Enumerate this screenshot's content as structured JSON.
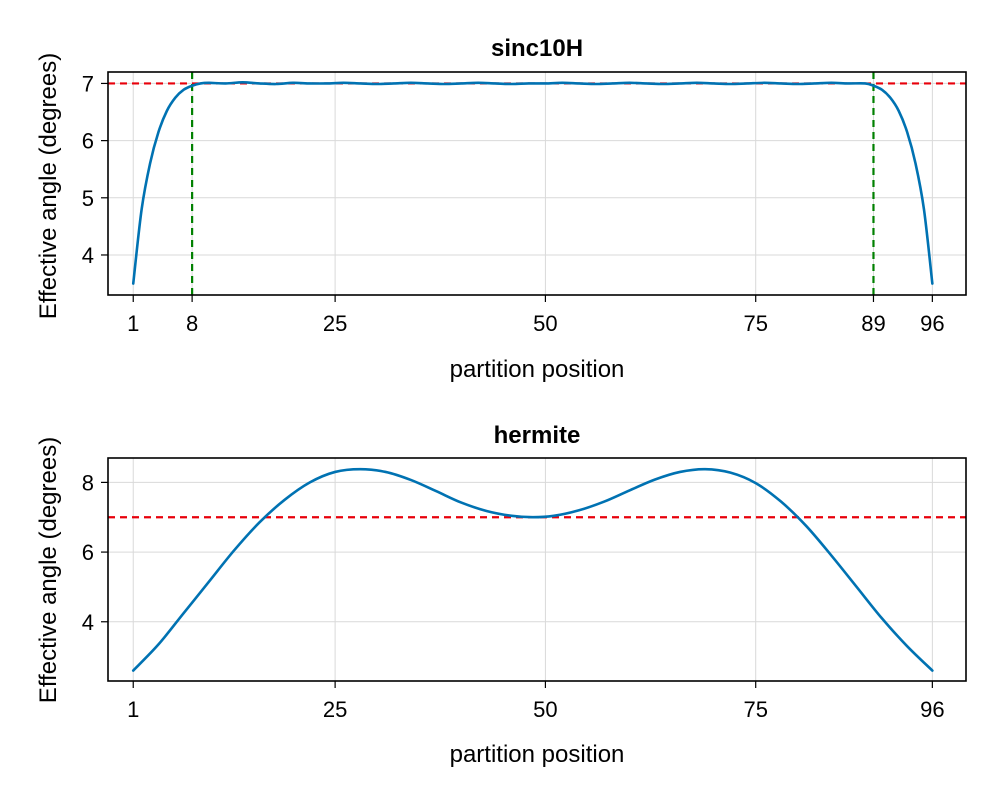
{
  "chart_data": [
    {
      "type": "line",
      "title": "sinc10H",
      "xlabel": "partition position",
      "ylabel": "Effective angle (degrees)",
      "xlim": [
        -2,
        100
      ],
      "ylim": [
        3.3,
        7.2
      ],
      "xticks": [
        1,
        8,
        25,
        50,
        75,
        89,
        96
      ],
      "yticks": [
        4,
        5,
        6,
        7
      ],
      "grid": true,
      "series": [
        {
          "color": "#0072b2",
          "x": [
            1,
            2,
            3,
            4,
            5,
            6,
            7,
            8,
            9,
            10,
            12,
            14,
            16,
            18,
            20,
            22,
            24,
            26,
            28,
            30,
            32,
            34,
            36,
            38,
            40,
            42,
            44,
            46,
            48,
            50,
            52,
            54,
            56,
            58,
            60,
            62,
            64,
            66,
            68,
            70,
            72,
            74,
            76,
            78,
            80,
            82,
            84,
            86,
            88,
            89,
            90,
            91,
            92,
            93,
            94,
            95,
            96
          ],
          "y": [
            3.5,
            4.8,
            5.6,
            6.15,
            6.52,
            6.75,
            6.89,
            6.96,
            7.0,
            7.01,
            7.0,
            7.02,
            7.0,
            6.99,
            7.01,
            7.0,
            7.0,
            7.01,
            7.0,
            6.99,
            7.0,
            7.01,
            7.0,
            6.99,
            7.0,
            7.01,
            7.0,
            6.99,
            7.0,
            7.0,
            7.01,
            7.0,
            6.99,
            7.0,
            7.01,
            7.0,
            6.99,
            7.0,
            7.01,
            7.0,
            6.99,
            7.0,
            7.01,
            7.0,
            6.99,
            7.0,
            7.01,
            7.0,
            7.0,
            6.96,
            6.89,
            6.75,
            6.52,
            6.15,
            5.6,
            4.8,
            3.5
          ]
        }
      ],
      "hlines": [
        {
          "y": 7,
          "color": "#e8000b",
          "style": "dashed"
        }
      ],
      "vlines": [
        {
          "x": 8,
          "color": "#008000",
          "style": "dashed"
        },
        {
          "x": 89,
          "color": "#008000",
          "style": "dashed"
        }
      ]
    },
    {
      "type": "line",
      "title": "hermite",
      "xlabel": "partition position",
      "ylabel": "Effective angle (degrees)",
      "xlim": [
        -2,
        100
      ],
      "ylim": [
        2.3,
        8.7
      ],
      "xticks": [
        1,
        25,
        50,
        75,
        96
      ],
      "yticks": [
        4,
        6,
        8
      ],
      "grid": true,
      "series": [
        {
          "color": "#0072b2",
          "x": [
            1,
            4,
            7,
            10,
            13,
            16,
            19,
            22,
            25,
            28,
            31,
            34,
            37,
            40,
            43,
            46,
            48.5,
            51,
            54,
            57,
            60,
            63,
            66,
            69,
            72,
            75,
            78,
            81,
            84,
            87,
            90,
            93,
            96
          ],
          "y": [
            2.6,
            3.35,
            4.25,
            5.15,
            6.05,
            6.85,
            7.5,
            8.0,
            8.3,
            8.38,
            8.3,
            8.07,
            7.75,
            7.42,
            7.18,
            7.04,
            7.0,
            7.04,
            7.2,
            7.45,
            7.77,
            8.08,
            8.3,
            8.38,
            8.28,
            7.98,
            7.45,
            6.75,
            5.9,
            5.0,
            4.1,
            3.3,
            2.6
          ]
        }
      ],
      "hlines": [
        {
          "y": 7,
          "color": "#e8000b",
          "style": "dashed"
        }
      ],
      "vlines": []
    }
  ]
}
